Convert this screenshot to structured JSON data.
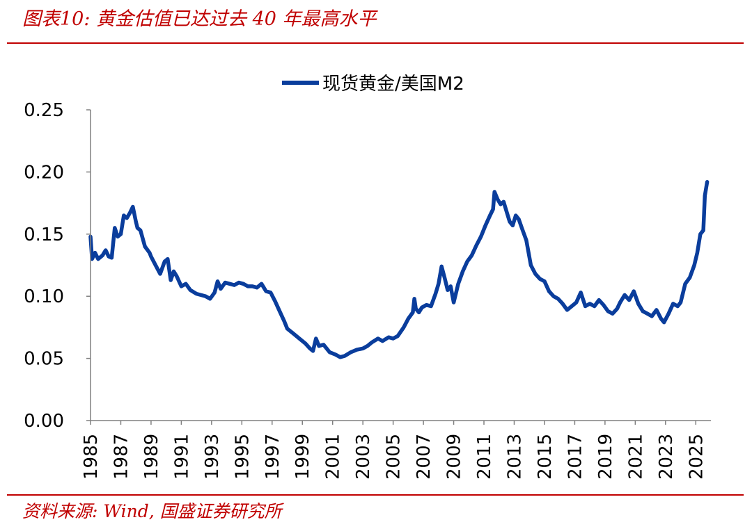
{
  "figure": {
    "title": "图表10:  黄金估值已达过去 40 年最高水平",
    "source": "资料来源:  Wind,  国盛证券研究所"
  },
  "colors": {
    "accent_red": "#c00000",
    "series_blue": "#0a3d9c",
    "axis": "#808080"
  },
  "chart_data": {
    "type": "line",
    "title": "",
    "xlabel": "",
    "ylabel": "",
    "legend": "top-center",
    "grid": false,
    "xlim": [
      1985.0,
      2026.0
    ],
    "ylim": [
      0.0,
      0.25
    ],
    "ytick_values": [
      0.0,
      0.05,
      0.1,
      0.15,
      0.2,
      0.25
    ],
    "ytick_labels": [
      "0.00",
      "0.05",
      "0.10",
      "0.15",
      "0.20",
      "0.25"
    ],
    "xtick_values": [
      1985,
      1987,
      1989,
      1991,
      1993,
      1995,
      1997,
      1999,
      2001,
      2003,
      2005,
      2007,
      2009,
      2011,
      2013,
      2015,
      2017,
      2019,
      2021,
      2023,
      2025
    ],
    "xtick_labels": [
      "1985",
      "1987",
      "1989",
      "1991",
      "1993",
      "1995",
      "1997",
      "1999",
      "2001",
      "2003",
      "2005",
      "2007",
      "2009",
      "2011",
      "2013",
      "2015",
      "2017",
      "2019",
      "2021",
      "2023",
      "2025"
    ],
    "series": [
      {
        "name": "现货黄金/美国M2",
        "x": [
          1985.0,
          1985.1,
          1985.3,
          1985.5,
          1985.8,
          1986.0,
          1986.2,
          1986.4,
          1986.6,
          1986.8,
          1987.0,
          1987.2,
          1987.4,
          1987.6,
          1987.8,
          1988.0,
          1988.1,
          1988.3,
          1988.6,
          1988.9,
          1989.0,
          1989.3,
          1989.6,
          1989.9,
          1990.1,
          1990.3,
          1990.5,
          1990.7,
          1991.0,
          1991.3,
          1991.6,
          1992.0,
          1992.3,
          1992.6,
          1992.9,
          1993.2,
          1993.4,
          1993.6,
          1993.9,
          1994.2,
          1994.5,
          1994.8,
          1995.1,
          1995.4,
          1995.7,
          1996.0,
          1996.3,
          1996.6,
          1996.9,
          1997.2,
          1997.5,
          1997.8,
          1998.0,
          1998.4,
          1998.8,
          1999.2,
          1999.5,
          1999.7,
          1999.9,
          2000.1,
          2000.4,
          2000.8,
          2001.2,
          2001.5,
          2001.8,
          2002.2,
          2002.6,
          2003.0,
          2003.3,
          2003.6,
          2004.0,
          2004.3,
          2004.7,
          2005.0,
          2005.3,
          2005.7,
          2006.0,
          2006.3,
          2006.4,
          2006.5,
          2006.7,
          2006.9,
          2007.2,
          2007.5,
          2007.8,
          2008.0,
          2008.2,
          2008.4,
          2008.6,
          2008.8,
          2009.0,
          2009.3,
          2009.6,
          2009.9,
          2010.2,
          2010.5,
          2010.8,
          2011.1,
          2011.4,
          2011.6,
          2011.7,
          2011.9,
          2012.1,
          2012.3,
          2012.5,
          2012.7,
          2012.9,
          2013.1,
          2013.3,
          2013.5,
          2013.8,
          2014.1,
          2014.4,
          2014.7,
          2015.0,
          2015.3,
          2015.6,
          2015.9,
          2016.2,
          2016.5,
          2016.8,
          2017.1,
          2017.4,
          2017.7,
          2018.0,
          2018.3,
          2018.6,
          2018.9,
          2019.2,
          2019.5,
          2019.8,
          2020.0,
          2020.3,
          2020.6,
          2020.9,
          2021.2,
          2021.5,
          2021.8,
          2022.1,
          2022.4,
          2022.7,
          2022.9,
          2023.2,
          2023.5,
          2023.8,
          2024.0,
          2024.3,
          2024.6,
          2024.9,
          2025.1,
          2025.3,
          2025.5,
          2025.6,
          2025.75
        ],
        "values": [
          0.148,
          0.13,
          0.135,
          0.13,
          0.133,
          0.137,
          0.132,
          0.131,
          0.155,
          0.148,
          0.15,
          0.165,
          0.163,
          0.167,
          0.172,
          0.16,
          0.155,
          0.153,
          0.14,
          0.135,
          0.132,
          0.125,
          0.118,
          0.128,
          0.13,
          0.113,
          0.12,
          0.116,
          0.108,
          0.11,
          0.105,
          0.102,
          0.101,
          0.1,
          0.098,
          0.103,
          0.112,
          0.106,
          0.111,
          0.11,
          0.109,
          0.111,
          0.11,
          0.108,
          0.108,
          0.107,
          0.11,
          0.104,
          0.103,
          0.096,
          0.088,
          0.08,
          0.074,
          0.07,
          0.066,
          0.062,
          0.058,
          0.056,
          0.066,
          0.06,
          0.061,
          0.055,
          0.053,
          0.051,
          0.052,
          0.055,
          0.057,
          0.058,
          0.06,
          0.063,
          0.066,
          0.064,
          0.067,
          0.066,
          0.068,
          0.075,
          0.082,
          0.087,
          0.098,
          0.09,
          0.087,
          0.091,
          0.093,
          0.092,
          0.102,
          0.11,
          0.124,
          0.115,
          0.105,
          0.108,
          0.095,
          0.11,
          0.12,
          0.128,
          0.133,
          0.141,
          0.148,
          0.157,
          0.165,
          0.17,
          0.184,
          0.178,
          0.174,
          0.176,
          0.168,
          0.16,
          0.157,
          0.165,
          0.162,
          0.155,
          0.145,
          0.125,
          0.118,
          0.114,
          0.112,
          0.104,
          0.1,
          0.098,
          0.094,
          0.089,
          0.092,
          0.095,
          0.103,
          0.092,
          0.094,
          0.092,
          0.097,
          0.093,
          0.088,
          0.086,
          0.09,
          0.095,
          0.101,
          0.097,
          0.104,
          0.094,
          0.088,
          0.086,
          0.084,
          0.089,
          0.082,
          0.079,
          0.086,
          0.094,
          0.092,
          0.095,
          0.11,
          0.115,
          0.125,
          0.135,
          0.15,
          0.153,
          0.181,
          0.192
        ]
      }
    ]
  }
}
